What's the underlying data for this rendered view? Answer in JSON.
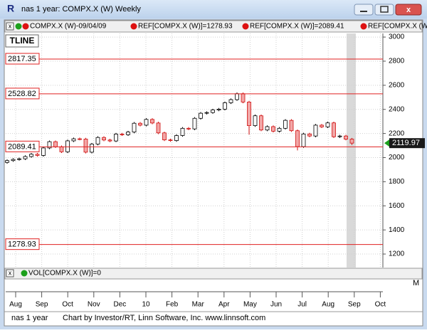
{
  "window": {
    "title": "nas 1 year: COMPX.X (W) Weekly"
  },
  "legend": [
    "COMPX.X (W)-09/04/09",
    "REF[COMPX.X (W)]=1278.93",
    "REF[COMPX.X (W)]=2089.41",
    "REF[COMPX.X (W)"
  ],
  "tool_label": "TLINE",
  "chart_data": {
    "type": "candlestick",
    "x_labels": [
      "Aug",
      "Sep",
      "Oct",
      "Nov",
      "Dec",
      "10",
      "Feb",
      "Mar",
      "Apr",
      "May",
      "Jun",
      "Jul",
      "Aug",
      "Sep",
      "Oct"
    ],
    "open": [
      1960,
      1975,
      1985,
      1990,
      2009,
      2028,
      2018,
      2080,
      2132,
      2090,
      2048,
      2139,
      2156,
      2154,
      2045,
      2112,
      2167,
      2146,
      2138,
      2195,
      2190,
      2212,
      2285,
      2269,
      2317,
      2287,
      2205,
      2147,
      2141,
      2183,
      2243,
      2238,
      2326,
      2368,
      2374,
      2395,
      2402,
      2455,
      2481,
      2530,
      2461,
      2265,
      2347,
      2229,
      2257,
      2219,
      2243,
      2309,
      2223,
      2091,
      2196,
      2179,
      2269,
      2255,
      2288,
      2173,
      2179,
      2153
    ],
    "high": [
      1985,
      1995,
      2000,
      2019,
      2038,
      2038,
      2090,
      2142,
      2142,
      2100,
      2149,
      2166,
      2166,
      2164,
      2122,
      2177,
      2177,
      2156,
      2205,
      2205,
      2222,
      2295,
      2295,
      2327,
      2327,
      2297,
      2215,
      2157,
      2193,
      2253,
      2253,
      2336,
      2378,
      2384,
      2405,
      2412,
      2465,
      2491,
      2540,
      2540,
      2471,
      2357,
      2357,
      2267,
      2267,
      2253,
      2319,
      2319,
      2233,
      2206,
      2206,
      2279,
      2279,
      2298,
      2298,
      2189,
      2189,
      2163
    ],
    "low": [
      1950,
      1965,
      1975,
      1980,
      1999,
      2008,
      2008,
      2070,
      2080,
      2038,
      2038,
      2129,
      2144,
      2035,
      2035,
      2102,
      2136,
      2128,
      2128,
      2180,
      2180,
      2202,
      2259,
      2259,
      2277,
      2195,
      2137,
      2131,
      2131,
      2173,
      2228,
      2228,
      2316,
      2358,
      2364,
      2385,
      2392,
      2445,
      2471,
      2451,
      2190,
      2255,
      2219,
      2219,
      2209,
      2209,
      2233,
      2213,
      2060,
      2081,
      2169,
      2169,
      2245,
      2245,
      2163,
      2163,
      2143,
      2105
    ],
    "close": [
      1975,
      1985,
      1990,
      2009,
      2028,
      2018,
      2080,
      2132,
      2090,
      2048,
      2139,
      2156,
      2154,
      2045,
      2112,
      2167,
      2146,
      2138,
      2195,
      2190,
      2212,
      2285,
      2269,
      2317,
      2287,
      2205,
      2147,
      2141,
      2183,
      2243,
      2238,
      2326,
      2368,
      2374,
      2395,
      2402,
      2455,
      2481,
      2530,
      2461,
      2265,
      2347,
      2229,
      2257,
      2219,
      2243,
      2309,
      2223,
      2091,
      2196,
      2179,
      2269,
      2255,
      2288,
      2173,
      2179,
      2153,
      2119.97
    ],
    "up_color": "#ffffff",
    "down_color": "#f2a7a7",
    "ylim": [
      1088,
      3030
    ],
    "yticks": [
      1200,
      1400,
      1600,
      1800,
      2000,
      2200,
      2400,
      2600,
      2800,
      3000
    ],
    "ref_lines": [
      2817.35,
      2528.82,
      2089.41,
      1278.93
    ],
    "ref_color": "#e02020",
    "grid": true
  },
  "volume_pane": {
    "label": "VOL[COMPX.X (W)]=0"
  },
  "axis_marker": "M",
  "footer": {
    "symbol": "nas 1 year",
    "credit": "Chart by Investor/RT, Linn Software, Inc. www.linnsoft.com"
  }
}
